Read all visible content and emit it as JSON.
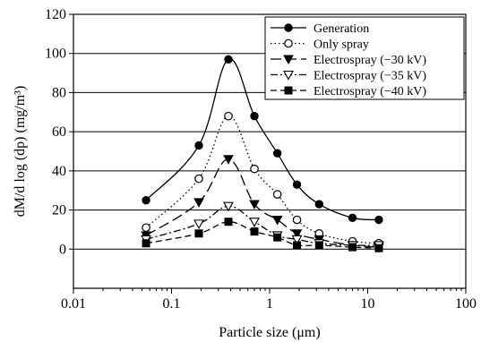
{
  "chart_data": {
    "type": "line",
    "xlabel": "Particle size (μm)",
    "ylabel": "dM/d log (dp) (mg/m³)",
    "xscale": "log",
    "xlim": [
      0.01,
      100
    ],
    "ylim": [
      -20,
      120
    ],
    "x_ticks": [
      0.01,
      0.1,
      1,
      10,
      100
    ],
    "x_tick_labels": [
      "0.01",
      "0.1",
      "1",
      "10",
      "100"
    ],
    "y_ticks": [
      0,
      20,
      40,
      60,
      80,
      100,
      120
    ],
    "y_tick_labels": [
      "0",
      "20",
      "40",
      "60",
      "80",
      "100",
      "120"
    ],
    "grid": "horizontal gridlines at 0–120",
    "legend_position": "top-right",
    "x": [
      0.055,
      0.19,
      0.38,
      0.7,
      1.2,
      1.9,
      3.2,
      7,
      13
    ],
    "series": [
      {
        "name": "Generation",
        "marker": "filled-circle",
        "line": "solid",
        "values": [
          25,
          53,
          97,
          68,
          49,
          33,
          23,
          16,
          15
        ]
      },
      {
        "name": "Only spray",
        "marker": "open-circle",
        "line": "dotted",
        "values": [
          11,
          36,
          68,
          41,
          28,
          15,
          8,
          4,
          3
        ]
      },
      {
        "name": "Electrospray (−30 kV)",
        "marker": "filled-triangle-down",
        "line": "long-dash",
        "values": [
          7,
          24,
          46,
          23,
          15,
          8,
          5,
          2,
          1
        ]
      },
      {
        "name": "Electrospray (−35 kV)",
        "marker": "open-triangle-down",
        "line": "dash-dot",
        "values": [
          5,
          13,
          22,
          14,
          7,
          5,
          3,
          2,
          2
        ]
      },
      {
        "name": "Electrospray (−40 kV)",
        "marker": "filled-square",
        "line": "dash",
        "values": [
          3,
          8,
          14,
          9,
          6,
          2,
          2,
          1,
          0.5
        ]
      }
    ]
  }
}
